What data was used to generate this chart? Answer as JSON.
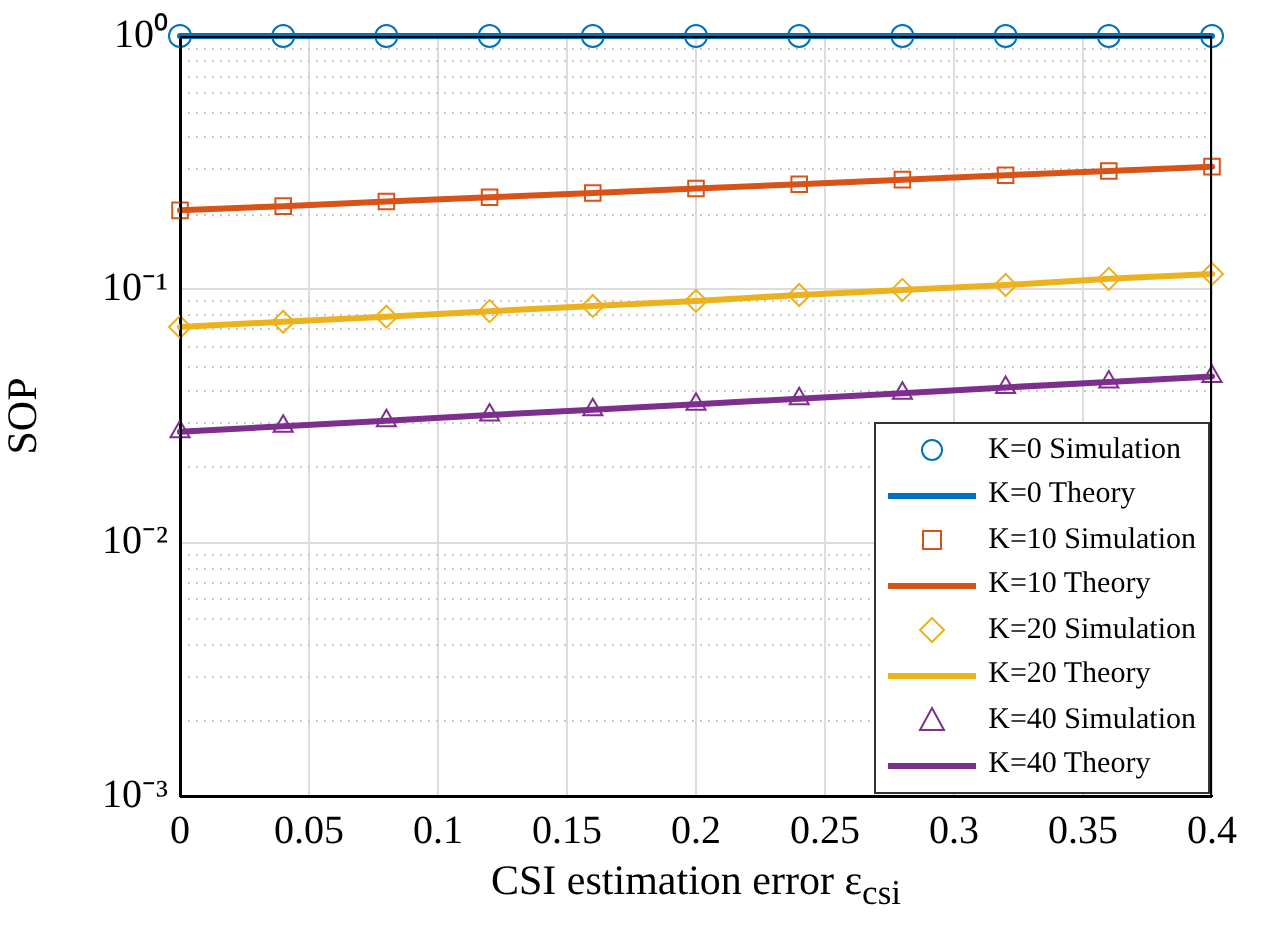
{
  "chart_data": {
    "type": "line",
    "xlabel": "CSI estimation error ε$_{csi}$",
    "ylabel": "SOP",
    "x": [
      0,
      0.04,
      0.08,
      0.12,
      0.16,
      0.2,
      0.24,
      0.28,
      0.32,
      0.36,
      0.4
    ],
    "series": [
      {
        "name": "K=0 Simulation",
        "type": "scatter",
        "marker": "circle",
        "color": "#0072bd",
        "values": [
          1,
          1,
          1,
          1,
          1,
          1,
          1,
          1,
          1,
          1,
          1
        ]
      },
      {
        "name": "K=0 Theory",
        "type": "line",
        "marker": "none",
        "color": "#0072bd",
        "values": [
          1,
          1,
          1,
          1,
          1,
          1,
          1,
          1,
          1,
          1,
          1
        ]
      },
      {
        "name": "K=10 Simulation",
        "type": "scatter",
        "marker": "square",
        "color": "#d95319",
        "values": [
          0.205,
          0.213,
          0.222,
          0.231,
          0.24,
          0.25,
          0.26,
          0.271,
          0.282,
          0.293,
          0.305
        ]
      },
      {
        "name": "K=10 Theory",
        "type": "line",
        "marker": "none",
        "color": "#d95319",
        "values": [
          0.205,
          0.213,
          0.222,
          0.231,
          0.24,
          0.25,
          0.26,
          0.271,
          0.282,
          0.293,
          0.305
        ]
      },
      {
        "name": "K=20 Simulation",
        "type": "scatter",
        "marker": "diamond",
        "color": "#edb120",
        "values": [
          0.071,
          0.0745,
          0.078,
          0.082,
          0.086,
          0.09,
          0.095,
          0.0995,
          0.104,
          0.11,
          0.115
        ]
      },
      {
        "name": "K=20 Theory",
        "type": "line",
        "marker": "none",
        "color": "#edb120",
        "values": [
          0.071,
          0.0745,
          0.078,
          0.082,
          0.086,
          0.09,
          0.095,
          0.0995,
          0.104,
          0.11,
          0.115
        ]
      },
      {
        "name": "K=40 Simulation",
        "type": "scatter",
        "marker": "triangle",
        "color": "#7e2f8e",
        "values": [
          0.0274,
          0.0288,
          0.0303,
          0.0319,
          0.0335,
          0.0352,
          0.037,
          0.0389,
          0.041,
          0.0431,
          0.0453
        ]
      },
      {
        "name": "K=40 Theory",
        "type": "line",
        "marker": "none",
        "color": "#7e2f8e",
        "values": [
          0.0274,
          0.0288,
          0.0303,
          0.0319,
          0.0335,
          0.0352,
          0.037,
          0.0389,
          0.041,
          0.0431,
          0.0453
        ]
      }
    ],
    "xlim": [
      0,
      0.4
    ],
    "xticks": [
      0,
      0.05,
      0.1,
      0.15,
      0.2,
      0.25,
      0.3,
      0.35,
      0.4
    ],
    "ylim": [
      0.001,
      1
    ],
    "yticks": [
      {
        "value": 0.001,
        "label": "10⁻³"
      },
      {
        "value": 0.01,
        "label": "10⁻²"
      },
      {
        "value": 0.1,
        "label": "10⁻¹"
      },
      {
        "value": 1,
        "label": "10⁰"
      }
    ],
    "log": true,
    "grid": true,
    "legend": "bottom right"
  }
}
